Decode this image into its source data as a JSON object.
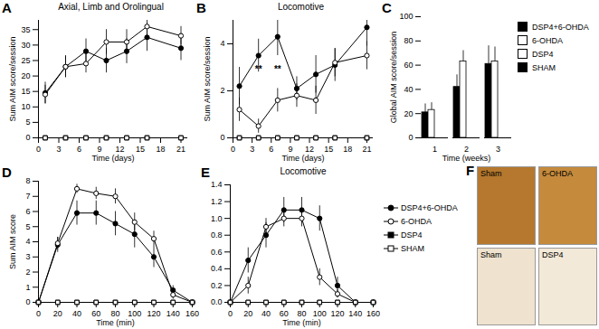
{
  "chart_data": [
    {
      "panel": "A",
      "type": "line",
      "title": "Axial, Limb and Orolingual",
      "x_label": "Time (days)",
      "y_label": "Sum AIM score/session",
      "x": [
        1,
        4,
        7,
        10,
        13,
        16,
        21
      ],
      "xlim": [
        0,
        22
      ],
      "xticks": [
        0,
        3,
        6,
        9,
        12,
        15,
        18,
        21
      ],
      "ylim": [
        0,
        38
      ],
      "yticks": [
        0,
        5,
        10,
        15,
        20,
        25,
        30,
        35
      ],
      "series": [
        {
          "name": "DSP4+6-OHDA",
          "color": "#000000",
          "marker": "circle",
          "values": [
            14.5,
            23,
            28,
            25,
            28,
            32.5,
            29
          ],
          "errors": [
            3.5,
            3.5,
            4,
            4,
            4,
            4.5,
            4
          ]
        },
        {
          "name": "6-OHDA",
          "color": "#000000",
          "marker": "open-circle",
          "values": [
            14,
            23,
            24,
            31,
            31,
            36,
            33
          ],
          "errors": [
            3,
            3.5,
            3,
            4,
            4,
            3.5,
            3
          ]
        },
        {
          "name": "DSP4",
          "color": "#000000",
          "marker": "square",
          "values": [
            0,
            0,
            0,
            0,
            0,
            0,
            0
          ]
        },
        {
          "name": "SHAM",
          "color": "#000000",
          "marker": "open-square",
          "values": [
            0,
            0,
            0,
            0,
            0,
            0,
            0
          ]
        }
      ]
    },
    {
      "panel": "B",
      "type": "line",
      "title": "Locomotive",
      "x_label": "Time (days)",
      "y_label": "Sum AIM score/session",
      "x": [
        1,
        4,
        7,
        10,
        13,
        16,
        21
      ],
      "xlim": [
        0,
        22
      ],
      "xticks": [
        0,
        3,
        6,
        9,
        12,
        15,
        18,
        21
      ],
      "ylim": [
        0,
        5
      ],
      "yticks": [
        0,
        2,
        4
      ],
      "annotations": [
        {
          "x": 4,
          "y": 2.9,
          "text": "**"
        },
        {
          "x": 7,
          "y": 2.9,
          "text": "**"
        }
      ],
      "series": [
        {
          "name": "DSP4+6-OHDA",
          "color": "#000000",
          "marker": "circle",
          "values": [
            2.2,
            3.5,
            4.3,
            2.1,
            2.7,
            3.1,
            4.7
          ],
          "errors": [
            0.8,
            0.7,
            0.8,
            0.5,
            0.8,
            0.7,
            0.8
          ]
        },
        {
          "name": "6-OHDA",
          "color": "#000000",
          "marker": "open-circle",
          "values": [
            1.2,
            0.5,
            1.6,
            1.8,
            1.6,
            3.2,
            3.5
          ],
          "errors": [
            0.5,
            0.3,
            0.5,
            0.5,
            0.6,
            0.6,
            0.6
          ]
        },
        {
          "name": "DSP4",
          "color": "#000000",
          "marker": "square",
          "values": [
            0,
            0,
            0,
            0,
            0,
            0,
            0
          ]
        },
        {
          "name": "SHAM",
          "color": "#000000",
          "marker": "open-square",
          "values": [
            0,
            0,
            0,
            0,
            0,
            0,
            0
          ]
        }
      ]
    },
    {
      "panel": "C",
      "type": "bar",
      "legend": "right",
      "x_label": "Time (weeks)",
      "y_label": "Global AIM score/session",
      "categories": [
        1,
        2,
        3
      ],
      "ylim": [
        0,
        100
      ],
      "yticks": [
        0,
        20,
        40,
        60,
        80,
        100
      ],
      "series": [
        {
          "name": "DSP4+6-OHDA",
          "color": "#000000",
          "values": [
            21,
            42,
            61
          ],
          "errors": [
            7,
            10,
            15
          ]
        },
        {
          "name": "6-OHDA",
          "color": "#ffffff",
          "values": [
            23,
            63,
            63
          ],
          "errors": [
            6,
            9,
            12
          ]
        },
        {
          "name": "DSP4",
          "color": "#ffffff",
          "values": [
            0,
            0,
            0
          ]
        },
        {
          "name": "SHAM",
          "color": "#000000",
          "values": [
            0,
            0,
            0
          ]
        }
      ]
    },
    {
      "panel": "D",
      "type": "line",
      "x_label": "Time (min)",
      "y_label": "Sum AIM score",
      "x": [
        0,
        20,
        40,
        60,
        80,
        100,
        120,
        140,
        160
      ],
      "xlim": [
        0,
        160
      ],
      "xticks": [
        0,
        20,
        40,
        60,
        80,
        100,
        120,
        140,
        160
      ],
      "ylim": [
        0,
        8
      ],
      "yticks": [
        0,
        1,
        2,
        3,
        4,
        5,
        6,
        7,
        8
      ],
      "series": [
        {
          "name": "DSP4+6-OHDA",
          "color": "#000000",
          "marker": "circle",
          "values": [
            0,
            3.8,
            5.9,
            5.9,
            5.2,
            4.5,
            3,
            0.8,
            0
          ],
          "errors": [
            0,
            0.5,
            0.8,
            0.8,
            0.8,
            0.9,
            0.7,
            0.3,
            0
          ]
        },
        {
          "name": "6-OHDA",
          "color": "#000000",
          "marker": "open-circle",
          "values": [
            0,
            3.9,
            7.5,
            7.2,
            7,
            5.3,
            4.2,
            0.5,
            0
          ],
          "errors": [
            0,
            0.4,
            0.3,
            0.4,
            0.5,
            0.6,
            0.5,
            0.3,
            0
          ]
        },
        {
          "name": "DSP4",
          "color": "#000000",
          "marker": "square",
          "values": [
            0,
            0,
            0,
            0,
            0,
            0,
            0,
            0,
            0
          ]
        },
        {
          "name": "SHAM",
          "color": "#000000",
          "marker": "open-square",
          "values": [
            0,
            0,
            0,
            0,
            0,
            0,
            0,
            0,
            0
          ]
        }
      ]
    },
    {
      "panel": "E",
      "type": "line",
      "legend": "right",
      "title": "Locomotive",
      "x_label": "Time (min)",
      "x": [
        0,
        20,
        40,
        60,
        80,
        100,
        120,
        140,
        160
      ],
      "xlim": [
        0,
        160
      ],
      "xticks": [
        0,
        20,
        40,
        60,
        80,
        100,
        120,
        140,
        160
      ],
      "ylim": [
        0,
        1.4
      ],
      "yticks": [
        {
          "value": 0,
          "label": "0.0"
        },
        0.2,
        0.4,
        0.6,
        0.8,
        {
          "value": 1,
          "label": "1.0"
        },
        1.2,
        1.4
      ],
      "series": [
        {
          "name": "DSP4+6-OHDA",
          "color": "#000000",
          "marker": "circle",
          "values": [
            0,
            0.5,
            0.8,
            1.1,
            1.1,
            1,
            0.2,
            0,
            0
          ],
          "errors": [
            0,
            0.15,
            0.15,
            0.15,
            0.15,
            0.15,
            0.1,
            0,
            0
          ]
        },
        {
          "name": "6-OHDA",
          "color": "#000000",
          "marker": "open-circle",
          "values": [
            0,
            0.2,
            0.9,
            1,
            1,
            0.3,
            0.1,
            0,
            0
          ],
          "errors": [
            0,
            0.1,
            0.1,
            0.1,
            0.1,
            0.1,
            0.05,
            0,
            0
          ]
        },
        {
          "name": "DSP4",
          "color": "#000000",
          "marker": "square",
          "values": [
            0,
            0,
            0,
            0,
            0,
            0,
            0,
            0,
            0
          ]
        },
        {
          "name": "SHAM",
          "color": "#000000",
          "marker": "open-square",
          "values": [
            0,
            0,
            0,
            0,
            0,
            0,
            0,
            0,
            0
          ]
        }
      ]
    },
    {
      "panel": "F",
      "type": "image",
      "labels": [
        "Sham",
        "6-OHDA",
        "Sham",
        "DSP4"
      ]
    }
  ]
}
